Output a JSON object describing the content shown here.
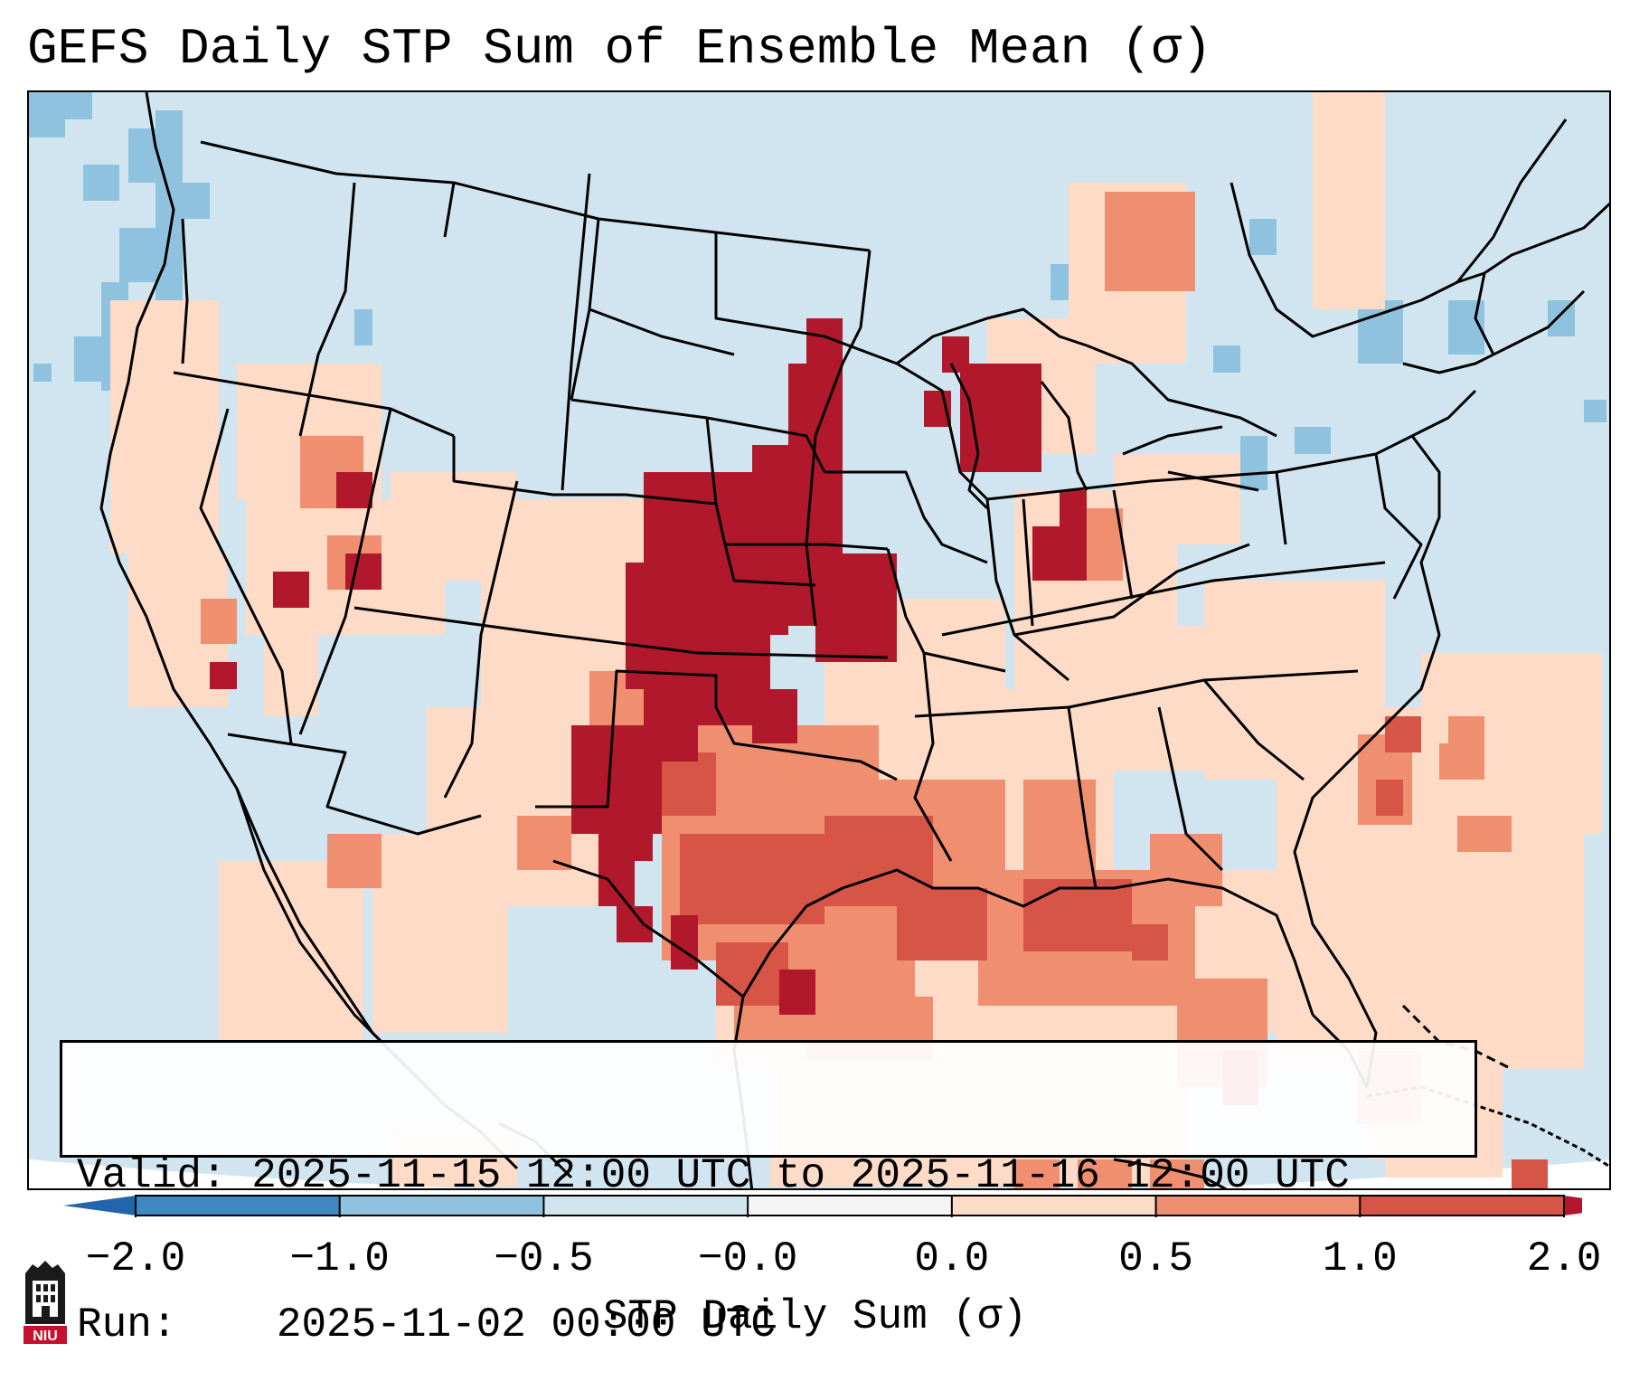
{
  "title": "GEFS Daily STP Sum of Ensemble Mean (σ)",
  "info": {
    "valid_label": "Valid:",
    "valid_text": "2025-11-15 12:00 UTC to 2025-11-16 12:00 UTC",
    "run_label": "Run:",
    "run_text": "2025-11-02 00:00 UTC"
  },
  "colorbar": {
    "label": "STP Daily Sum (σ)",
    "ticks": [
      "−2.0",
      "−1.0",
      "−0.5",
      "−0.0",
      "0.0",
      "0.5",
      "1.0",
      "2.0"
    ],
    "bins": [
      {
        "from": -2.0,
        "to": -1.0,
        "color": "#3f89c2"
      },
      {
        "from": -1.0,
        "to": -0.5,
        "color": "#8fc2de"
      },
      {
        "from": -0.5,
        "to": -0.0,
        "color": "#d1e5f0"
      },
      {
        "from": -0.0,
        "to": 0.0,
        "color": "#f5f5f5"
      },
      {
        "from": 0.0,
        "to": 0.5,
        "color": "#fddbc7"
      },
      {
        "from": 0.5,
        "to": 1.0,
        "color": "#ef8f6f"
      },
      {
        "from": 1.0,
        "to": 2.0,
        "color": "#d65547"
      }
    ],
    "under_color": "#2166ac",
    "over_color": "#b2182b"
  },
  "logo": {
    "text": "NIU"
  },
  "colors": {
    "background": "#d1e5f0",
    "weak_positive": "#fddbc7",
    "moderate_positive": "#ef8f6f",
    "strong_positive": "#d65547",
    "extreme_positive": "#b2182b",
    "negative": "#8fc2de"
  }
}
